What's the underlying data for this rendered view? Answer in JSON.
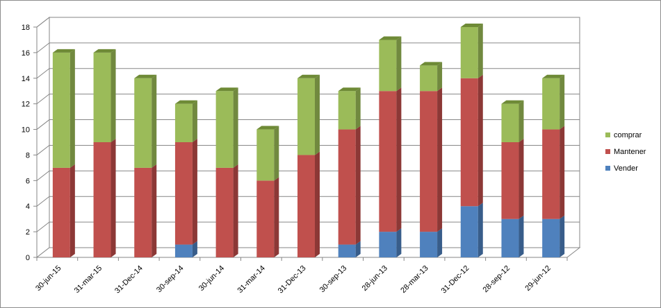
{
  "chart_data": {
    "type": "bar",
    "stacked": true,
    "three_d": true,
    "categories": [
      "30-jun-15",
      "31-mar-15",
      "31-Dec-14",
      "30-sep-14",
      "30-jun-14",
      "31-mar-14",
      "31-Dec-13",
      "30-sep-13",
      "28-jun-13",
      "28-mar-13",
      "31-Dec-12",
      "28-sep-12",
      "29-jun-12"
    ],
    "series": [
      {
        "name": "Vender",
        "color": "#4f81bd",
        "side": "#385d8a",
        "top": "#6f9bd0",
        "values": [
          0,
          0,
          0,
          1,
          0,
          0,
          0,
          1,
          2,
          2,
          4,
          3,
          3
        ]
      },
      {
        "name": "Mantener",
        "color": "#c0504d",
        "side": "#8c3836",
        "top": "#cf6e6b",
        "values": [
          7,
          9,
          7,
          8,
          7,
          6,
          8,
          9,
          11,
          11,
          10,
          6,
          7
        ]
      },
      {
        "name": "comprar",
        "color": "#9bbb59",
        "side": "#71893f",
        "top": "#6e8a36",
        "values": [
          9,
          7,
          7,
          3,
          6,
          4,
          6,
          3,
          4,
          2,
          4,
          3,
          4
        ]
      }
    ],
    "title": "",
    "xlabel": "",
    "ylabel": "",
    "ylim": [
      0,
      18
    ],
    "ytick_step": 2,
    "yticks": [
      "0",
      "2",
      "4",
      "6",
      "8",
      "10",
      "12",
      "14",
      "16",
      "18"
    ],
    "grid": true,
    "legend_position": "right",
    "legend_order": [
      "comprar",
      "Mantener",
      "Vender"
    ]
  }
}
